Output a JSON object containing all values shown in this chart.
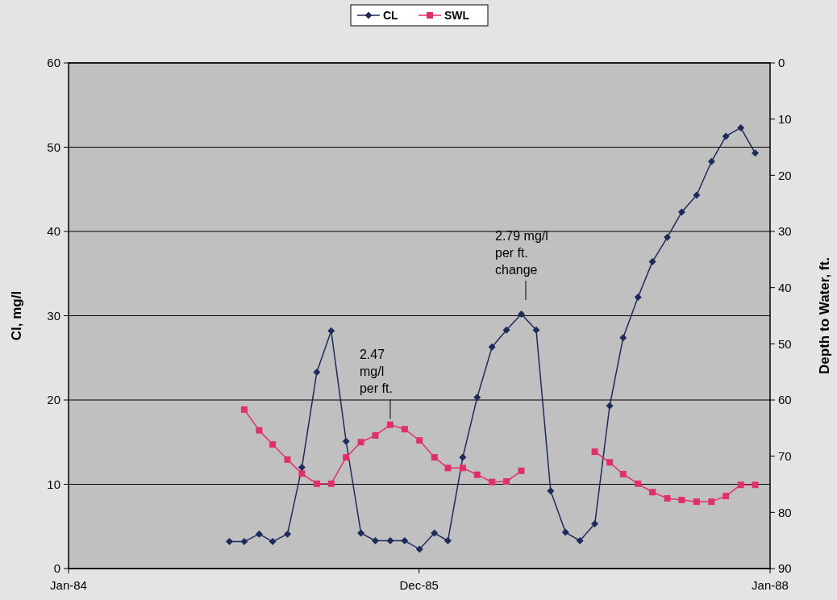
{
  "chart_data": {
    "type": "line",
    "ylabel": "Cl, mg/l",
    "y2label": "Depth to Water, ft.",
    "x": [
      "1984-12",
      "1985-01",
      "1985-02",
      "1985-03",
      "1985-04",
      "1985-05",
      "1985-06",
      "1985-07",
      "1985-08",
      "1985-09",
      "1985-10",
      "1985-11",
      "1985-12",
      "1986-01",
      "1986-02",
      "1986-03",
      "1986-04",
      "1986-05",
      "1986-06",
      "1986-07",
      "1986-08",
      "1986-09",
      "1986-10",
      "1986-11",
      "1986-12",
      "1987-01",
      "1987-02",
      "1987-03",
      "1987-04",
      "1987-05",
      "1987-06",
      "1987-07",
      "1987-08",
      "1987-09",
      "1987-10",
      "1987-11",
      "1987-12"
    ],
    "series": [
      {
        "name": "CL",
        "color": "#1c2b5a",
        "marker": "diamond",
        "values": [
          3.2,
          3.2,
          4.1,
          3.2,
          4.1,
          12,
          23.3,
          28.2,
          15.1,
          4.2,
          3.3,
          3.3,
          3.3,
          2.3,
          4.2,
          3.3,
          13.2,
          20.3,
          26.3,
          28.3,
          30.2,
          28.3,
          9.2,
          4.3,
          3.3,
          5.3,
          19.3,
          27.4,
          32.2,
          36.4,
          39.3,
          42.3,
          44.3,
          48.3,
          51.3,
          52.3,
          49.3
        ]
      },
      {
        "name": "SWL",
        "color": "#e0306a",
        "marker": "square",
        "axis": "y2",
        "values": [
          null,
          61.7,
          65.4,
          67.9,
          70.6,
          73.1,
          74.9,
          74.9,
          70.2,
          67.5,
          66.3,
          64.4,
          65.2,
          67.2,
          70.2,
          72.1,
          72.1,
          73.3,
          74.6,
          74.5,
          72.6,
          null,
          null,
          null,
          null,
          69.2,
          71.1,
          73.2,
          74.9,
          76.4,
          77.5,
          77.8,
          78.1,
          78.1,
          77.1,
          75.1,
          75.1
        ]
      }
    ],
    "xlim": [
      "1984-01-01",
      "1988-01-01"
    ],
    "xticks": [
      {
        "value": "1984-01-01",
        "label": "Jan-84"
      },
      {
        "value": "1985-12-31",
        "label": "Dec-85"
      },
      {
        "value": "1988-01-01",
        "label": "Jan-88"
      }
    ],
    "ylim": [
      0,
      60
    ],
    "yticks": [
      0,
      10,
      20,
      30,
      40,
      50,
      60
    ],
    "y2lim": [
      90,
      0
    ],
    "y2ticks": [
      0,
      10,
      20,
      30,
      40,
      50,
      60,
      70,
      80,
      90
    ],
    "grid": "y",
    "legend": "top",
    "line_style": "solid",
    "annotations": [
      {
        "text": "2.47\nmg/l\nper ft.",
        "x": "1985-11",
        "y": 17
      },
      "2.79 mg/l\nper ft.\nchange"
    ]
  }
}
